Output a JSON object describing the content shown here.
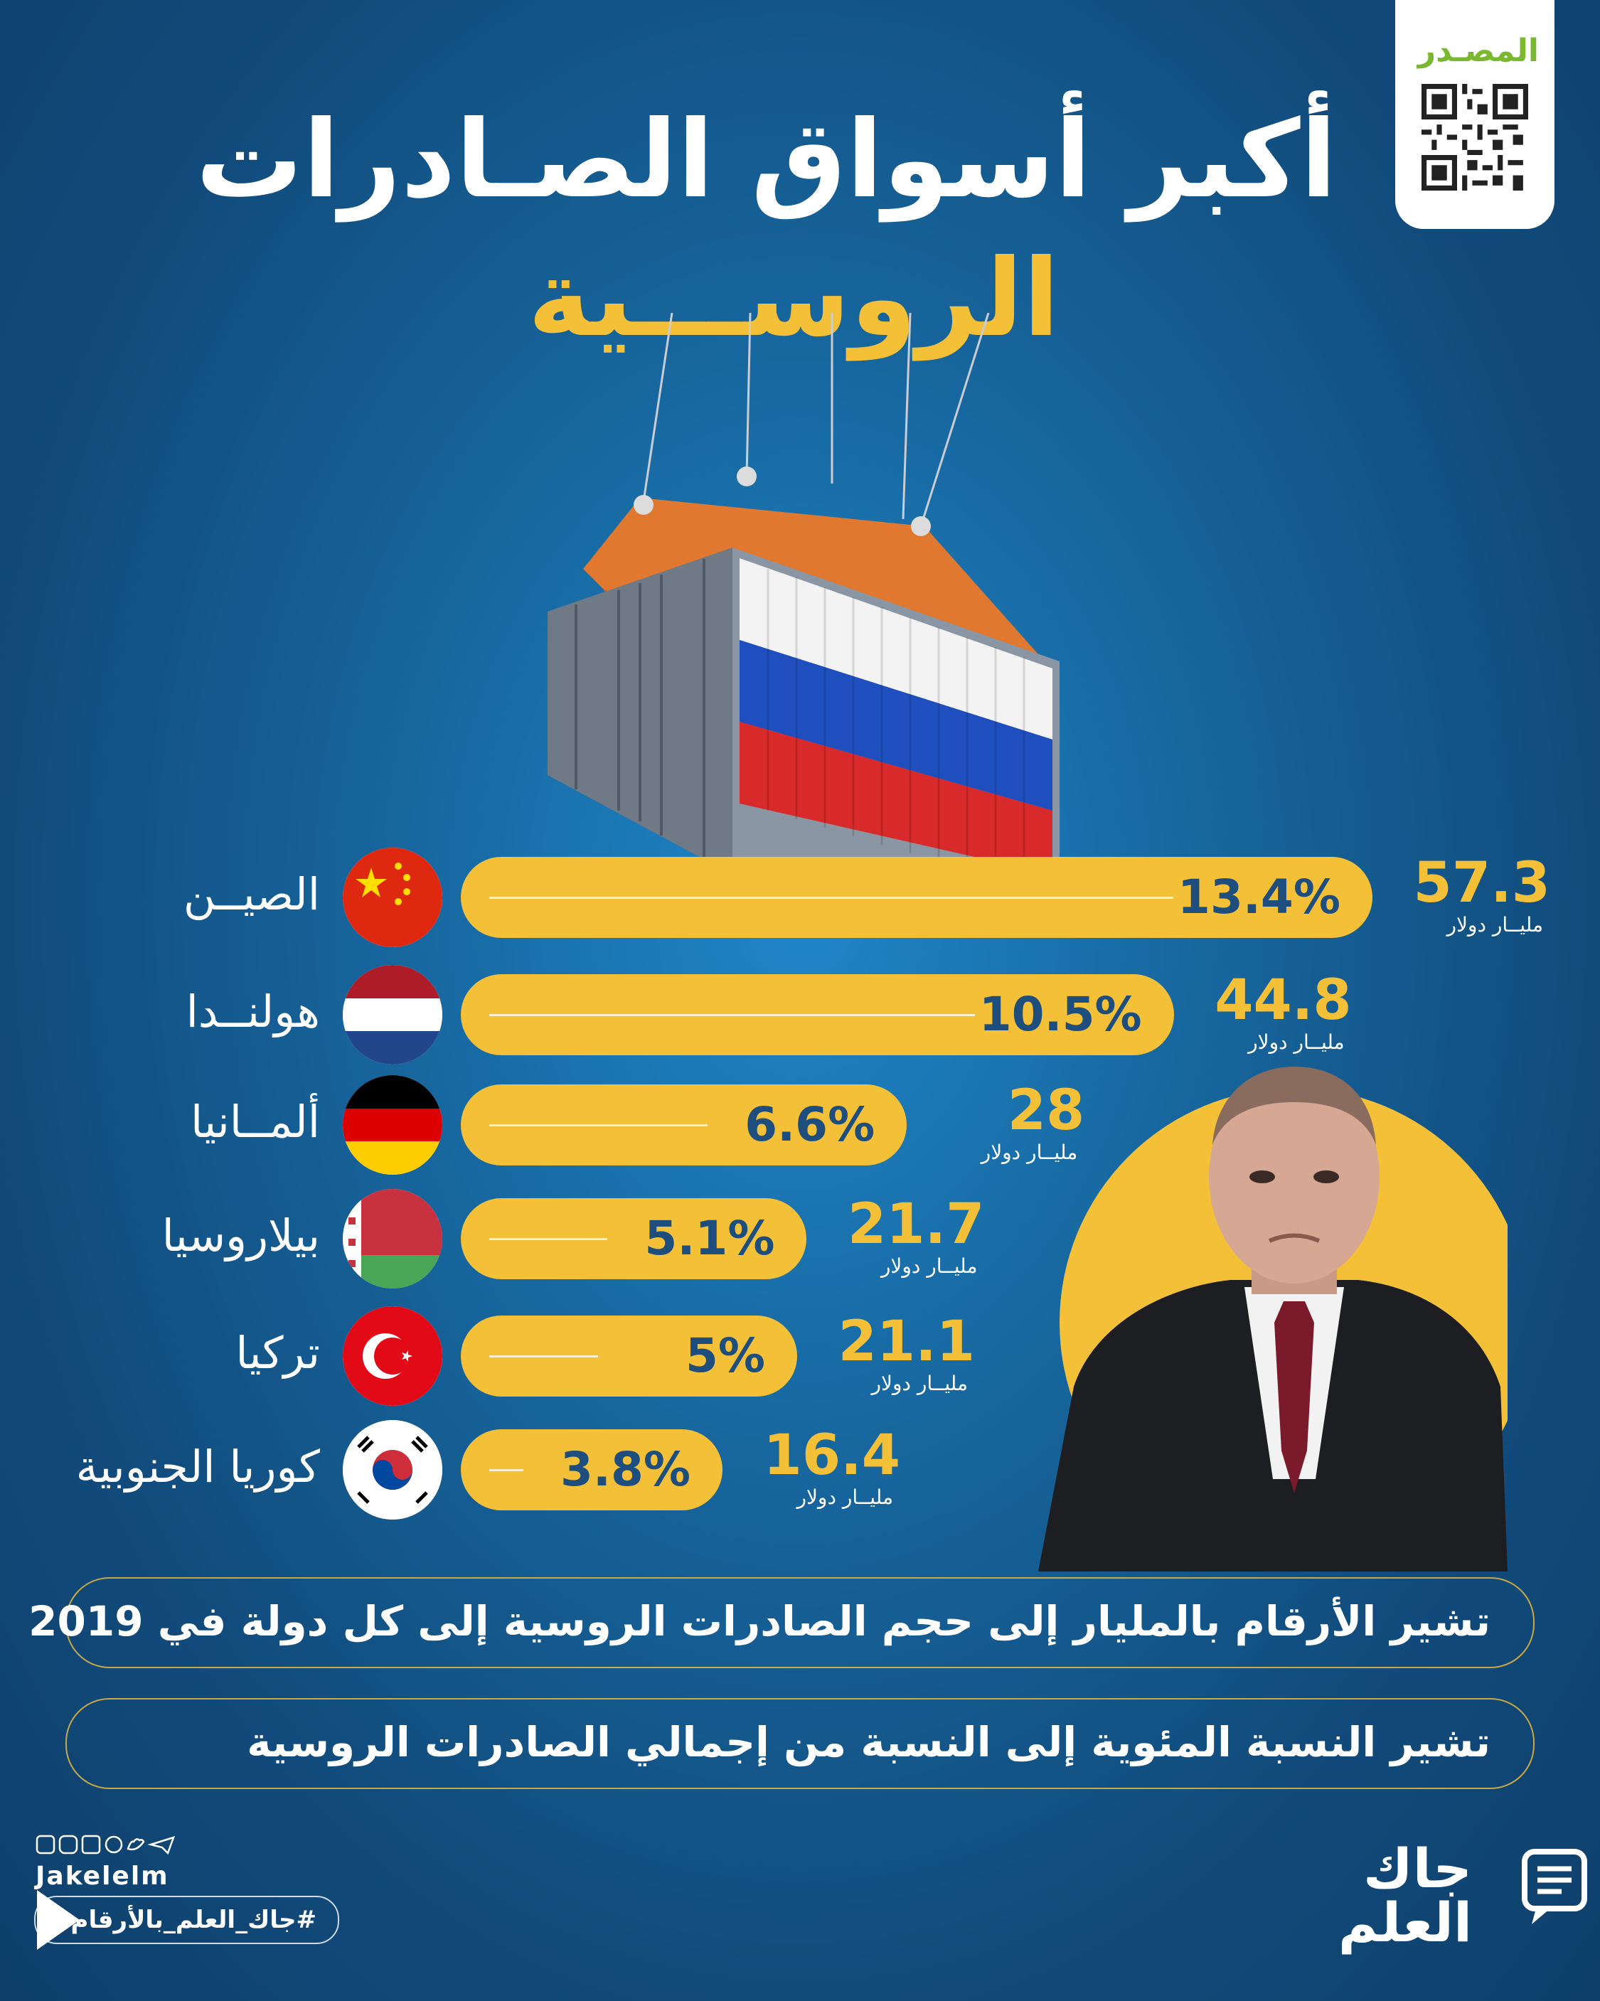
{
  "title": {
    "line1": "أكبر أسواق الصـادرات",
    "line2": "الروســـية"
  },
  "source": {
    "label": "المصـدر"
  },
  "chart_data": {
    "type": "bar",
    "orientation": "horizontal",
    "title": "أكبر أسواق الصـادرات الروســـية",
    "categories": [
      "الصيــن",
      "هولنــدا",
      "ألمــانيا",
      "بيلاروسيا",
      "تركيا",
      "كوريا الجنوبية"
    ],
    "series": [
      {
        "values": [
          57.3,
          44.8,
          28,
          21.7,
          21.1,
          16.4
        ]
      },
      {
        "values": [
          13.4,
          10.5,
          6.6,
          5.1,
          5,
          3.8
        ]
      }
    ],
    "value_labels": [
      "57.3",
      "44.8",
      "28",
      "21.7",
      "21.1",
      "16.4"
    ],
    "percent_labels": [
      "13.4%",
      "10.5%",
      "6.6%",
      "5.1%",
      "5%",
      "3.8%"
    ],
    "unit_label": "مليــار دولار",
    "flags": [
      "china-flag",
      "netherlands-flag",
      "germany-flag",
      "belarus-flag",
      "turkey-flag",
      "south-korea-flag"
    ],
    "colors": {
      "bar": "#f4c038",
      "percent_text": "#1e4e7e",
      "value_text": "#f4c038"
    }
  },
  "notes": [
    "تشير الأرقام بالمليار إلى حجم الصادرات الروسية إلى كل دولة في 2019",
    "تشير النسبة المئوية إلى النسبة من إجمالي الصادرات الروسية"
  ],
  "footer": {
    "handle": "Jakelelm",
    "hashtag": "#جاك_العلم_بالأرقام",
    "logo_line1": "جاك",
    "logo_line2": "العلم"
  }
}
